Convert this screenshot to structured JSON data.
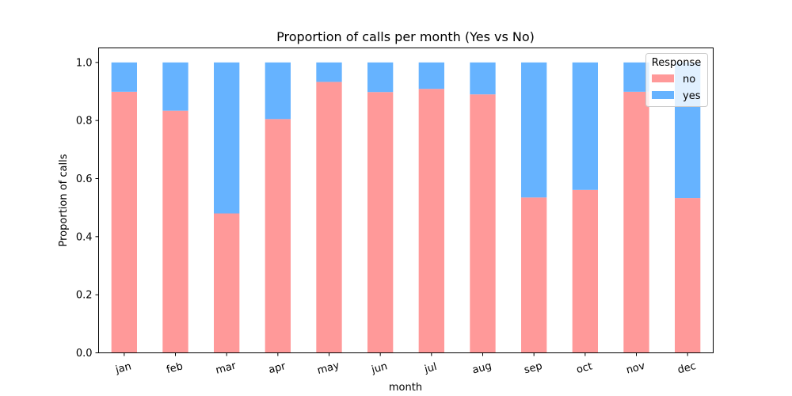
{
  "chart_data": {
    "type": "bar",
    "stacked": true,
    "title": "Proportion of calls per month (Yes vs No)",
    "xlabel": "month",
    "ylabel": "Proportion of calls",
    "ylim": [
      0,
      1.05
    ],
    "yticks": [
      "0.0",
      "0.2",
      "0.4",
      "0.6",
      "0.8",
      "1.0"
    ],
    "categories": [
      "jan",
      "feb",
      "mar",
      "apr",
      "may",
      "jun",
      "jul",
      "aug",
      "sep",
      "oct",
      "nov",
      "dec"
    ],
    "series": [
      {
        "name": "no",
        "color": "#ff9999",
        "values": [
          0.899,
          0.834,
          0.48,
          0.805,
          0.933,
          0.898,
          0.909,
          0.89,
          0.535,
          0.561,
          0.899,
          0.533
        ]
      },
      {
        "name": "yes",
        "color": "#66b3ff",
        "values": [
          0.101,
          0.166,
          0.52,
          0.195,
          0.067,
          0.102,
          0.091,
          0.11,
          0.465,
          0.439,
          0.101,
          0.467
        ]
      }
    ],
    "legend": {
      "title": "Response",
      "placement": "top-right"
    },
    "grid": false
  }
}
